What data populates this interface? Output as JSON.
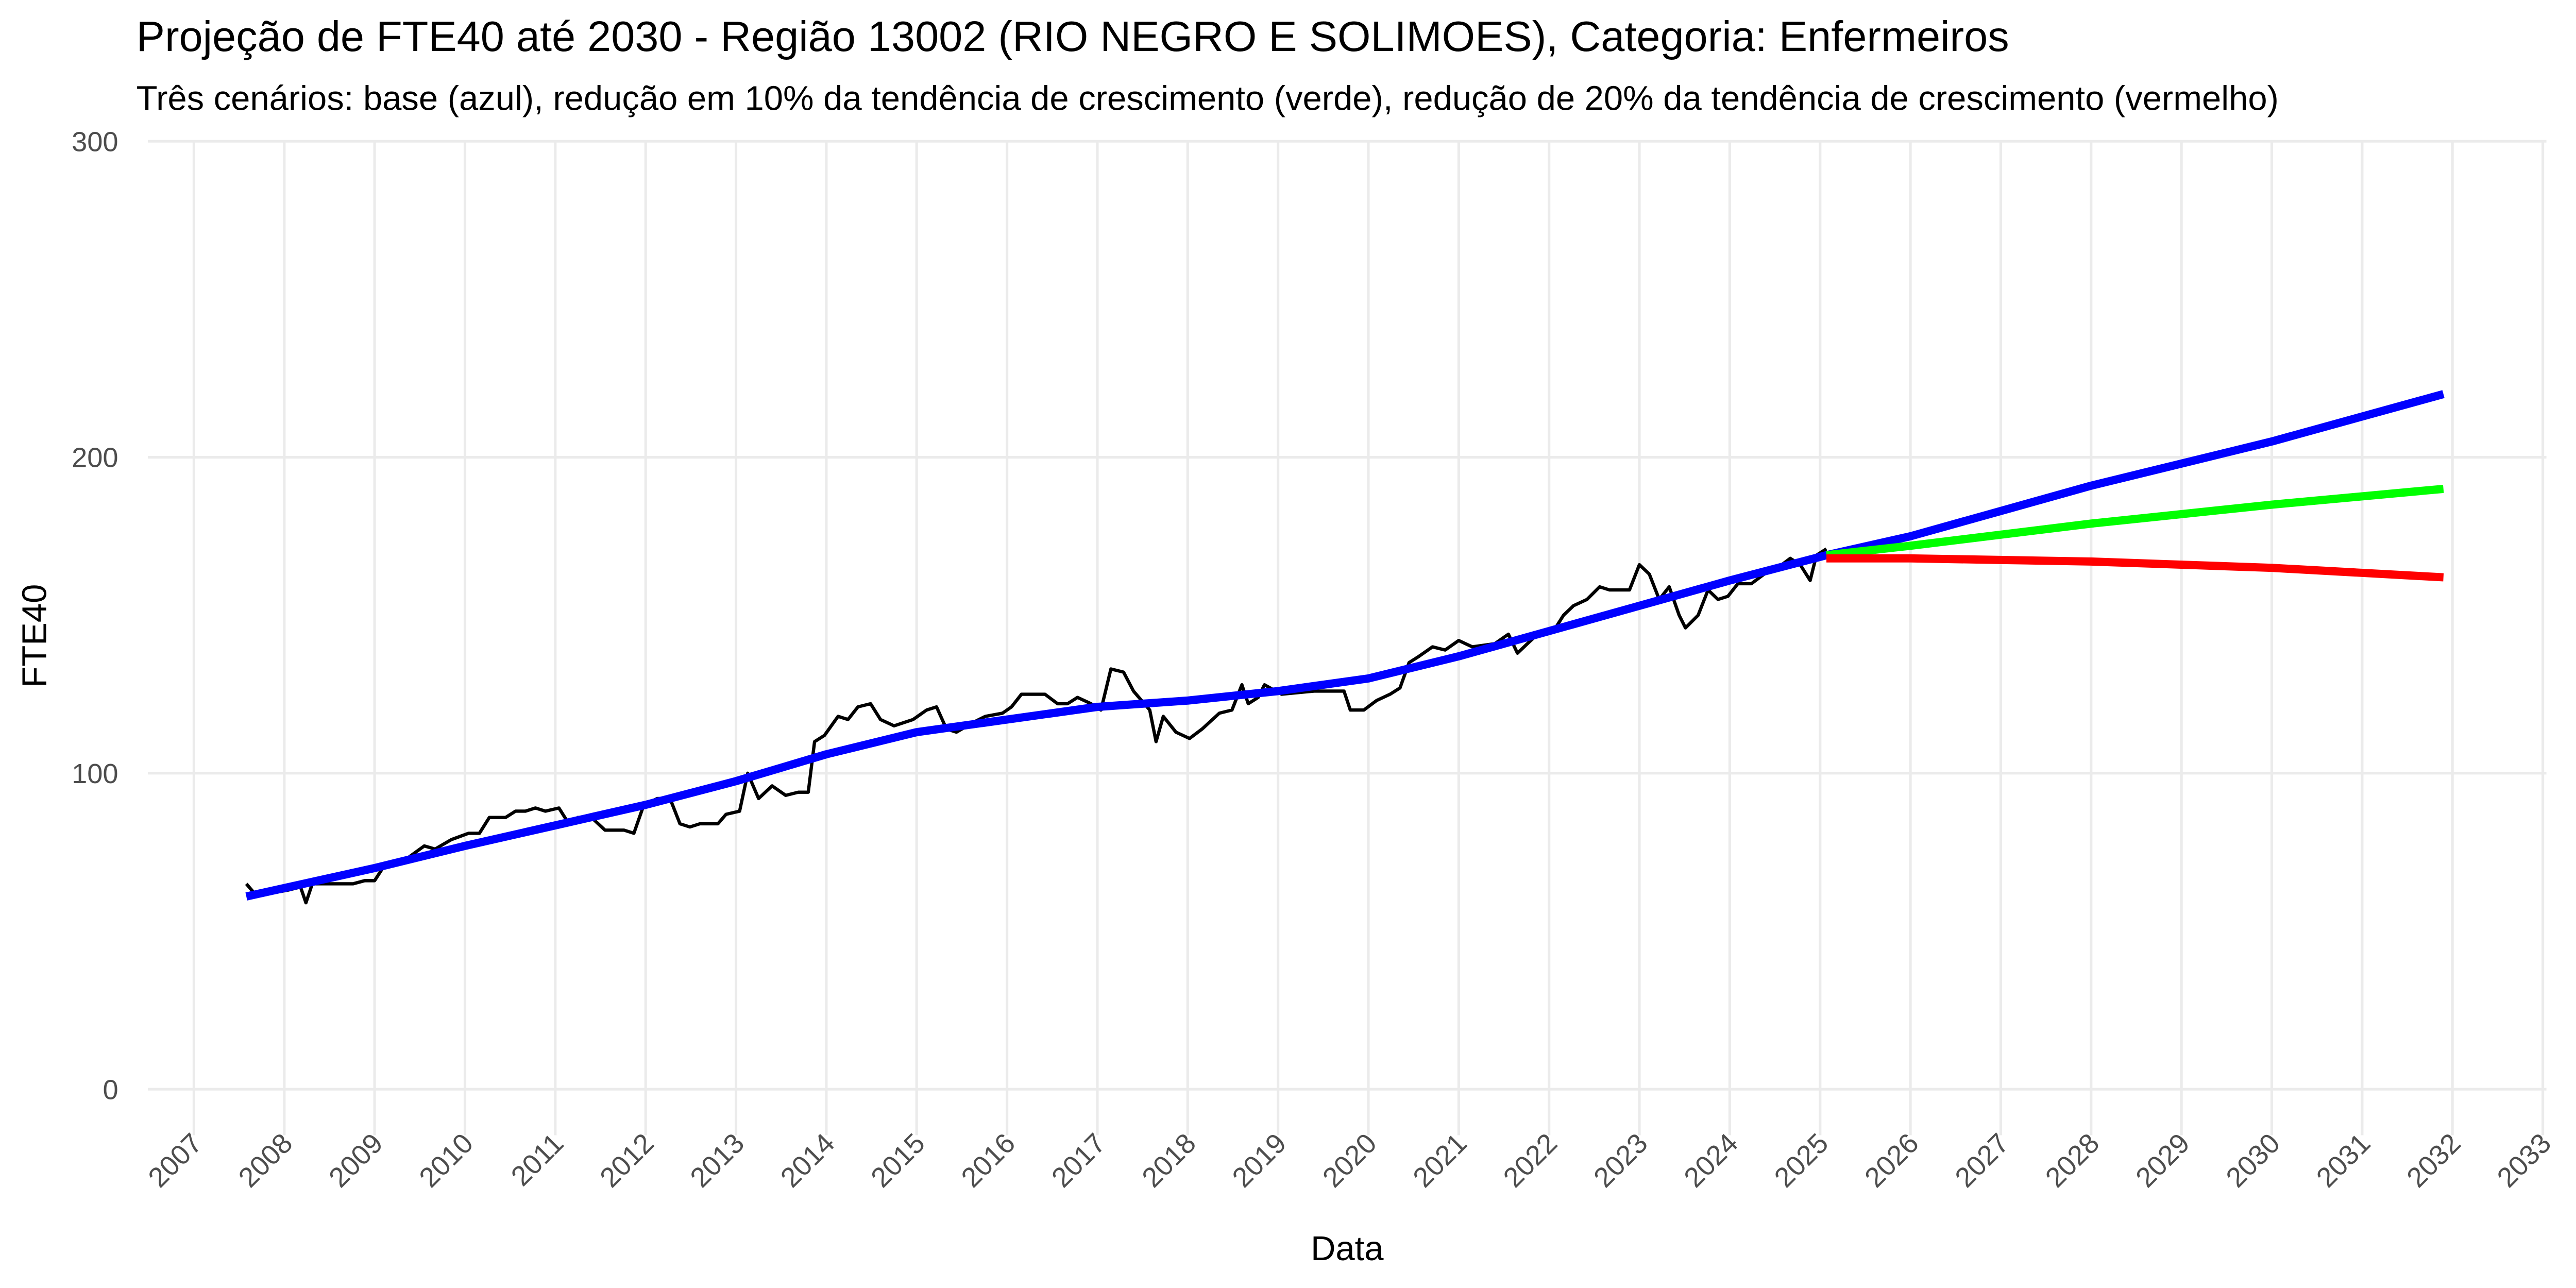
{
  "chart_data": {
    "type": "line",
    "title": "Projeção de FTE40 até 2030 - Região 13002 (RIO NEGRO E SOLIMOES), Categoria: Enfermeiros",
    "subtitle": "Três cenários: base (azul), redução em 10% da tendência de crescimento (verde), redução de 20% da tendência de crescimento (vermelho)",
    "x_label": "Data",
    "y_label": "FTE40",
    "xlim": [
      2006.49,
      2033.04
    ],
    "xticks": [
      2007,
      2008,
      2009,
      2010,
      2011,
      2012,
      2013,
      2014,
      2015,
      2016,
      2017,
      2018,
      2019,
      2020,
      2021,
      2022,
      2023,
      2024,
      2025,
      2026,
      2027,
      2028,
      2029,
      2030,
      2031,
      2032,
      2033
    ],
    "ylim": [
      0,
      300
    ],
    "yticks": [
      0,
      100,
      200,
      300
    ],
    "grid": true,
    "series": [
      {
        "color": "#000000",
        "x": [
          2007.58,
          2007.67,
          2007.85,
          2008.04,
          2008.18,
          2008.24,
          2008.31,
          2008.49,
          2008.76,
          2008.89,
          2009.0,
          2009.09,
          2009.31,
          2009.55,
          2009.67,
          2009.85,
          2010.04,
          2010.16,
          2010.27,
          2010.45,
          2010.56,
          2010.67,
          2010.78,
          2010.89,
          2011.04,
          2011.15,
          2011.25,
          2011.4,
          2011.55,
          2011.76,
          2011.87,
          2011.98,
          2012.13,
          2012.27,
          2012.38,
          2012.49,
          2012.6,
          2012.8,
          2012.89,
          2013.04,
          2013.13,
          2013.25,
          2013.4,
          2013.55,
          2013.69,
          2013.8,
          2013.87,
          2013.98,
          2014.13,
          2014.24,
          2014.35,
          2014.49,
          2014.6,
          2014.75,
          2014.96,
          2015.11,
          2015.22,
          2015.33,
          2015.44,
          2015.62,
          2015.76,
          2015.95,
          2016.05,
          2016.16,
          2016.42,
          2016.56,
          2016.67,
          2016.78,
          2016.93,
          2017.04,
          2017.15,
          2017.29,
          2017.4,
          2017.58,
          2017.65,
          2017.73,
          2017.87,
          2018.02,
          2018.16,
          2018.35,
          2018.49,
          2018.6,
          2018.67,
          2018.78,
          2018.85,
          2019.04,
          2019.4,
          2019.73,
          2019.8,
          2019.95,
          2020.09,
          2020.24,
          2020.35,
          2020.45,
          2020.56,
          2020.71,
          2020.85,
          2021.0,
          2021.15,
          2021.4,
          2021.55,
          2021.65,
          2021.76,
          2021.91,
          2022.05,
          2022.16,
          2022.27,
          2022.42,
          2022.56,
          2022.67,
          2022.89,
          2023.0,
          2023.11,
          2023.22,
          2023.33,
          2023.44,
          2023.51,
          2023.65,
          2023.76,
          2023.87,
          2023.98,
          2024.09,
          2024.24,
          2024.38,
          2024.53,
          2024.67,
          2024.78,
          2024.89,
          2024.96,
          2025.07
        ],
        "values": [
          65,
          62,
          62,
          63,
          64,
          59,
          65,
          65,
          65,
          66,
          66,
          70,
          72,
          77,
          76,
          79,
          81,
          81,
          86,
          86,
          88,
          88,
          89,
          88,
          89,
          84,
          86,
          86,
          82,
          82,
          81,
          90,
          92,
          92,
          84,
          83,
          84,
          84,
          87,
          88,
          100,
          92,
          96,
          93,
          94,
          94,
          110,
          112,
          118,
          117,
          121,
          122,
          117,
          115,
          117,
          120,
          121,
          114,
          113,
          116,
          118,
          119,
          121,
          125,
          125,
          122,
          122,
          124,
          122,
          120,
          133,
          132,
          126,
          120,
          110,
          118,
          113,
          111,
          114,
          119,
          120,
          128,
          122,
          124,
          128,
          125,
          126,
          126,
          120,
          120,
          123,
          125,
          127,
          135,
          137,
          140,
          139,
          142,
          140,
          141,
          144,
          138,
          141,
          145,
          145,
          150,
          153,
          155,
          159,
          158,
          158,
          166,
          163,
          155,
          159,
          150,
          146,
          150,
          158,
          155,
          156,
          160,
          160,
          163,
          165,
          168,
          166,
          161,
          169,
          171
        ]
      },
      {
        "color": "#0000ff",
        "x": [
          2007.58,
          2009,
          2010,
          2011,
          2012,
          2013,
          2014,
          2015,
          2016,
          2017,
          2018,
          2019,
          2020,
          2021,
          2022,
          2023,
          2024,
          2025.07,
          2026,
          2028,
          2030,
          2031.9
        ],
        "values": [
          61,
          70,
          77,
          83.5,
          90,
          97.5,
          106,
          113,
          117,
          121,
          123,
          126,
          130,
          137,
          145,
          153,
          161,
          169,
          175,
          191,
          205,
          220
        ]
      },
      {
        "color": "#00ff00",
        "x": [
          2025.07,
          2026,
          2028,
          2030,
          2031.9
        ],
        "values": [
          169,
          172,
          179,
          185,
          190
        ]
      },
      {
        "color": "#ff0000",
        "x": [
          2025.07,
          2026,
          2027,
          2028,
          2030,
          2031.9
        ],
        "values": [
          168,
          168,
          167.5,
          167,
          165,
          162
        ]
      }
    ]
  }
}
